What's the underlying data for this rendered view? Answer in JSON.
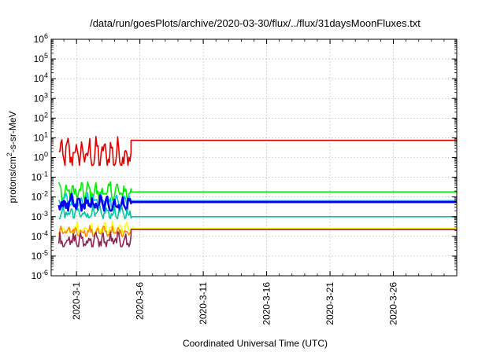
{
  "chart_data": {
    "type": "line",
    "title": "/data/run/goesPlots/archive/2020-03-30/flux/../flux/31daysMoonFluxes.txt",
    "xlabel": "Coordinated Universal Time (UTC)",
    "ylabel": "protons/cm2-s-sr-MeV",
    "ylabel_parts": {
      "pre": "protons/cm",
      "sup": "2",
      "post": "-s-sr-MeV"
    },
    "yscale": "log",
    "ylim_exp": [
      -6,
      6
    ],
    "y_tick_exponents": [
      -6,
      -5,
      -4,
      -3,
      -2,
      -1,
      0,
      1,
      2,
      3,
      4,
      5,
      6
    ],
    "y_tick_base": "10",
    "xlim": [
      "2020-02-28",
      "2020-03-31"
    ],
    "x_ticks": [
      {
        "label": "2020-3-1",
        "date": "2020-03-01"
      },
      {
        "label": "2020-3-6",
        "date": "2020-03-06"
      },
      {
        "label": "2020-3-11",
        "date": "2020-03-11"
      },
      {
        "label": "2020-3-16",
        "date": "2020-03-16"
      },
      {
        "label": "2020-3-21",
        "date": "2020-03-21"
      },
      {
        "label": "2020-3-26",
        "date": "2020-03-26"
      }
    ],
    "grid": true,
    "series": [
      {
        "color": "#e00000",
        "noisy_until": "2020-03-05",
        "noisy_range": [
          0.4,
          15
        ],
        "flat_value": 7.5,
        "width": 1.6
      },
      {
        "color": "#00ee00",
        "noisy_until": "2020-03-05",
        "noisy_range": [
          0.007,
          0.08
        ],
        "flat_value": 0.018,
        "width": 1.6
      },
      {
        "color": "#00c0ff",
        "noisy_until": "2020-03-05",
        "noisy_range": [
          0.003,
          0.02
        ],
        "flat_value": 0.0065,
        "width": 1.6
      },
      {
        "color": "#0000ee",
        "noisy_until": "2020-03-05",
        "noisy_range": [
          0.002,
          0.015
        ],
        "flat_value": 0.0055,
        "width": 2.6
      },
      {
        "color": "#00c8a0",
        "noisy_until": "2020-03-05",
        "noisy_range": [
          0.0008,
          0.004
        ],
        "flat_value": 0.001,
        "width": 1.6
      },
      {
        "color": "#ffff00",
        "noisy_until": "2020-03-05",
        "noisy_range": [
          0.00015,
          0.0006
        ],
        "flat_value": 0.00025,
        "width": 1.6
      },
      {
        "color": "#ff8000",
        "noisy_until": "2020-03-05",
        "noisy_range": [
          0.0001,
          0.0004
        ],
        "flat_value": 0.00022,
        "width": 1.4
      },
      {
        "color": "#8b2252",
        "noisy_until": "2020-03-05",
        "noisy_range": [
          3e-05,
          0.0002
        ],
        "flat_value": 0.000225,
        "width": 1.6
      }
    ]
  }
}
